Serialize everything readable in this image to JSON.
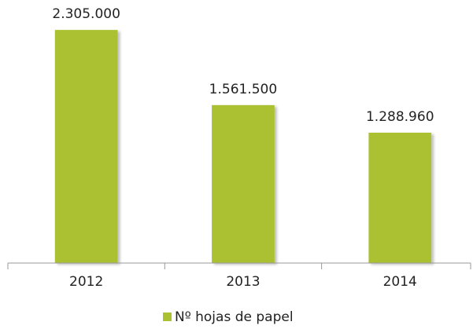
{
  "chart_data": {
    "type": "bar",
    "categories": [
      "2012",
      "2013",
      "2014"
    ],
    "series": [
      {
        "name": "Nº hojas de papel",
        "color": "#abc132",
        "values": [
          2305000,
          1561500,
          1288960
        ],
        "value_labels": [
          "2.305.000",
          "1.561.500",
          "1.288.960"
        ]
      }
    ],
    "ylim": [
      0,
      2500000
    ],
    "legend": "bottom"
  }
}
